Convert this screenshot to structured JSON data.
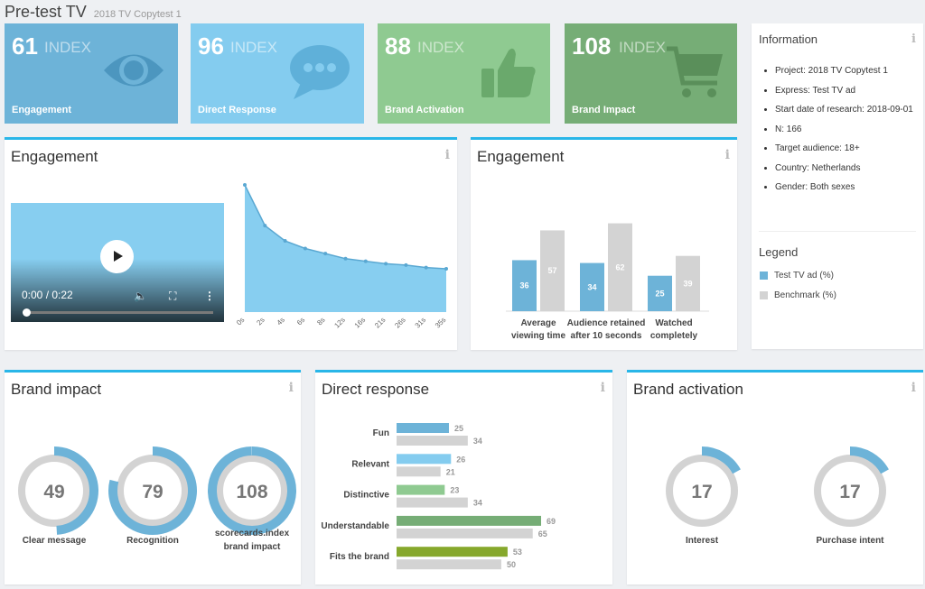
{
  "header": {
    "title": "Pre-test TV",
    "subtitle": "2018 TV Copytest 1"
  },
  "tiles": [
    {
      "value": "61",
      "unit": "INDEX",
      "label": "Engagement",
      "icon": "eye-icon",
      "color": "#6db3d8"
    },
    {
      "value": "96",
      "unit": "INDEX",
      "label": "Direct Response",
      "icon": "speech-bubble-icon",
      "color": "#84ccef"
    },
    {
      "value": "88",
      "unit": "INDEX",
      "label": "Brand Activation",
      "icon": "thumbs-up-icon",
      "color": "#8fca91"
    },
    {
      "value": "108",
      "unit": "INDEX",
      "label": "Brand Impact",
      "icon": "shopping-cart-icon",
      "color": "#76ad76"
    }
  ],
  "info_card": {
    "title": "Information",
    "items": [
      "Project: 2018 TV Copytest 1",
      "Express: Test TV ad",
      "Start date of research: 2018-09-01",
      "N: 166",
      "Target audience: 18+",
      "Country: Netherlands",
      "Gender: Both sexes"
    ],
    "legend_title": "Legend",
    "legend": [
      {
        "label": "Test TV ad (%)",
        "color": "#6db3d8"
      },
      {
        "label": "Benchmark (%)",
        "color": "#d3d3d3"
      }
    ]
  },
  "engagement_video": {
    "title": "Engagement",
    "video_time": "0:00 / 0:22"
  },
  "engagement_bars_card": {
    "title": "Engagement"
  },
  "brand_impact": {
    "title": "Brand impact"
  },
  "direct_response": {
    "title": "Direct response"
  },
  "brand_activation": {
    "title": "Brand activation"
  },
  "chart_data": [
    {
      "type": "area",
      "x": [
        "0s",
        "2s",
        "4s",
        "6s",
        "8s",
        "12s",
        "16s",
        "21s",
        "26s",
        "31s",
        "35s"
      ],
      "y": [
        100,
        68,
        56,
        50,
        46,
        42,
        40,
        38,
        37,
        35,
        34
      ],
      "color": "#87cef0"
    },
    {
      "type": "bar",
      "categories": [
        [
          "Average",
          "viewing time"
        ],
        [
          "Audience retained",
          "after 10 seconds"
        ],
        [
          "Watched",
          "completely"
        ]
      ],
      "series": [
        {
          "name": "Test TV ad (%)",
          "values": [
            36,
            34,
            25
          ],
          "color": "#6db3d8"
        },
        {
          "name": "Benchmark (%)",
          "values": [
            57,
            62,
            39
          ],
          "color": "#d3d3d3"
        }
      ],
      "ylim": [
        0,
        70
      ]
    },
    {
      "type": "gauge",
      "items": [
        {
          "label": "Clear message",
          "value": 49,
          "fraction": 0.49
        },
        {
          "label": "Recognition",
          "value": 79,
          "fraction": 0.79
        },
        {
          "label": "scorecards.index brand impact",
          "value": 108,
          "fraction": 1.0
        }
      ],
      "color": "#6db3d8"
    },
    {
      "type": "bar",
      "orientation": "horizontal",
      "categories": [
        "Fun",
        "Relevant",
        "Distinctive",
        "Understandable",
        "Fits the brand"
      ],
      "test_values": [
        25,
        26,
        23,
        69,
        53
      ],
      "benchmark_values": [
        34,
        21,
        34,
        65,
        50
      ],
      "test_colors": [
        "#6db3d8",
        "#84ccef",
        "#8fca91",
        "#76ad76",
        "#86a82c"
      ],
      "benchmark_color": "#d3d3d3",
      "xlim": [
        0,
        80
      ]
    },
    {
      "type": "gauge",
      "items": [
        {
          "label": "Interest",
          "value": 17,
          "fraction": 0.17
        },
        {
          "label": "Purchase intent",
          "value": 17,
          "fraction": 0.17
        }
      ],
      "color": "#6db3d8"
    }
  ]
}
